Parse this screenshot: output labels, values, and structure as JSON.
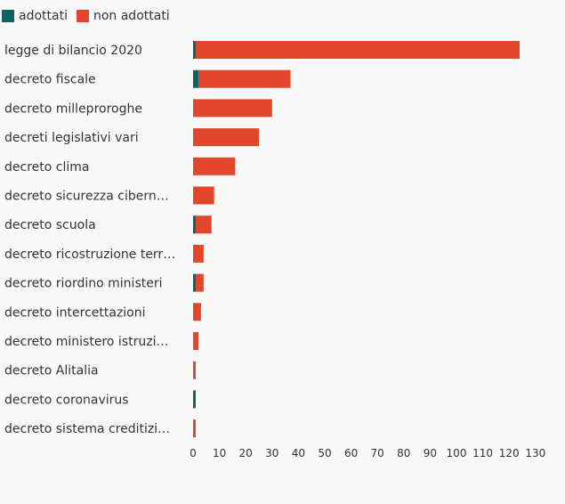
{
  "chart_data": {
    "type": "bar",
    "orientation": "horizontal",
    "stacked": true,
    "categories": [
      "legge di bilancio 2020",
      "decreto fiscale",
      "decreto milleproroghe",
      "decreti legislativi vari",
      "decreto clima",
      "decreto sicurezza cibern…",
      "decreto scuola",
      "decreto ricostruzione terr…",
      "decreto riordino ministeri",
      "decreto intercettazioni",
      "decreto ministero istruzi…",
      "decreto Alitalia",
      "decreto coronavirus",
      "decreto sistema creditizi…"
    ],
    "series": [
      {
        "name": "adottati",
        "color": "#0f6262",
        "values": [
          1,
          2,
          0,
          0,
          0,
          0,
          1,
          0,
          1,
          0,
          0,
          0,
          1,
          0
        ]
      },
      {
        "name": "non adottati",
        "color": "#e2462b",
        "values": [
          123,
          35,
          30,
          25,
          16,
          8,
          6,
          4,
          3,
          3,
          2,
          1,
          0,
          1
        ]
      }
    ],
    "xticks": [
      0,
      10,
      20,
      30,
      40,
      50,
      60,
      70,
      80,
      90,
      100,
      110,
      120,
      130
    ],
    "xlim": [
      0,
      130
    ],
    "legend_position": "top-left",
    "grid": false
  }
}
